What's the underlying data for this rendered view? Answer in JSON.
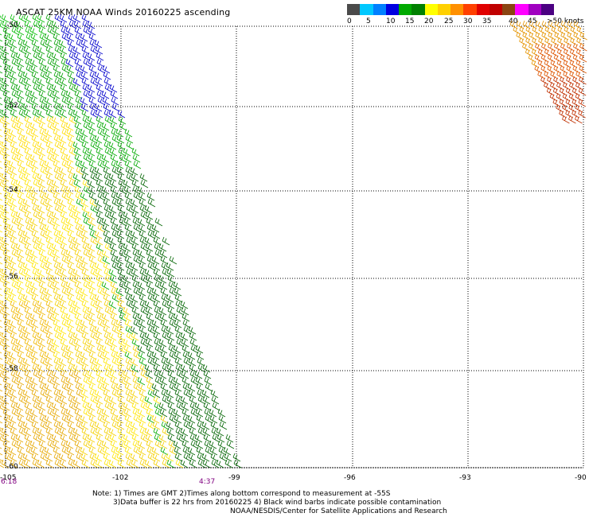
{
  "title": "ASCAT 25KM NOAA Winds 20160225 ascending",
  "legend": {
    "colors": [
      "#4a4a4a",
      "#00c8ff",
      "#0080ff",
      "#0000e0",
      "#00aa00",
      "#008000",
      "#ffff00",
      "#ffd000",
      "#ff9000",
      "#ff4000",
      "#e00000",
      "#c00000",
      "#8b4513",
      "#ff00ff",
      "#a000c0",
      "#4b0082"
    ],
    "labels": [
      "0",
      "5",
      "10",
      "15",
      "20",
      "25",
      "30",
      "35",
      "40",
      "45",
      ">50 knots"
    ]
  },
  "map": {
    "lat_labels": [
      "-50",
      "-52",
      "-54",
      "-56",
      "-58",
      "-60"
    ],
    "lon_labels": [
      "-105",
      "-102",
      "-99",
      "-96",
      "-93",
      "-90"
    ],
    "times": [
      "6:18",
      "4:37"
    ]
  },
  "notes": {
    "line1": "Note: 1) Times are GMT 2)Times along bottom correspond to measurement at -55S",
    "line2": "3)Data buffer is 22 hrs from 20160225 4) Black wind barbs indicate possible contamination",
    "line3": "NOAA/NESDIS/Center for Satellite Applications and Research"
  }
}
